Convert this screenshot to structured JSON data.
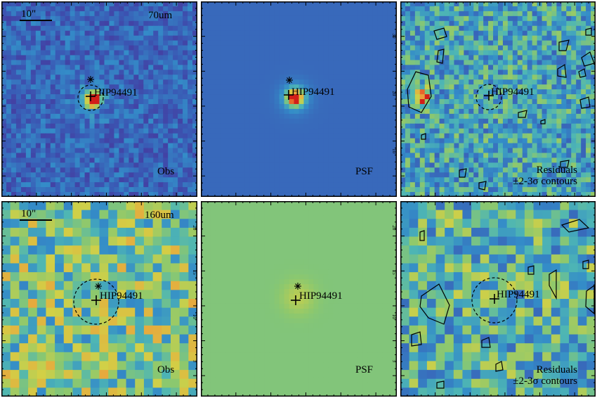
{
  "figure": {
    "rows": [
      {
        "band": "70um",
        "panels": [
          {
            "id": "p1",
            "kind": "obs",
            "labels": [
              "Obs"
            ],
            "band_label": "70um",
            "scale_bar": "10\"",
            "source": "HIP94491",
            "has_circle": true,
            "contours": false,
            "axis_ticks": []
          },
          {
            "id": "p2",
            "kind": "psf",
            "labels": [
              "PSF"
            ],
            "band_label": "",
            "scale_bar": "",
            "source": "HIP94491",
            "has_circle": false,
            "contours": false,
            "axis_ticks": [
              "30",
              "20",
              "10"
            ]
          },
          {
            "id": "p3",
            "kind": "residual",
            "labels": [
              "Residuals",
              "±2-3σ contours"
            ],
            "band_label": "",
            "scale_bar": "",
            "source": "HIP94491",
            "has_circle": true,
            "contours": true,
            "axis_ticks": []
          }
        ]
      },
      {
        "band": "160um",
        "panels": [
          {
            "id": "p4",
            "kind": "obs",
            "labels": [
              "Obs"
            ],
            "band_label": "160um",
            "scale_bar": "10\"",
            "source": "HIP94491",
            "has_circle": true,
            "contours": false,
            "axis_ticks": [
              "20",
              "15",
              "10",
              "5"
            ]
          },
          {
            "id": "p5",
            "kind": "psf",
            "labels": [
              "PSF"
            ],
            "band_label": "",
            "scale_bar": "",
            "source": "HIP94491",
            "has_circle": false,
            "contours": false,
            "axis_ticks": [
              "20",
              "15",
              "10",
              "5"
            ]
          },
          {
            "id": "p6",
            "kind": "residual",
            "labels": [
              "Residuals",
              "±2-3σ contours"
            ],
            "band_label": "",
            "scale_bar": "",
            "source": "HIP94491",
            "has_circle": true,
            "contours": true,
            "axis_ticks": []
          }
        ]
      }
    ],
    "colors": {
      "background_psf_70": "#3d57a8",
      "background_psf_160": "#8fbf6a",
      "peak": "#e0301e"
    }
  }
}
